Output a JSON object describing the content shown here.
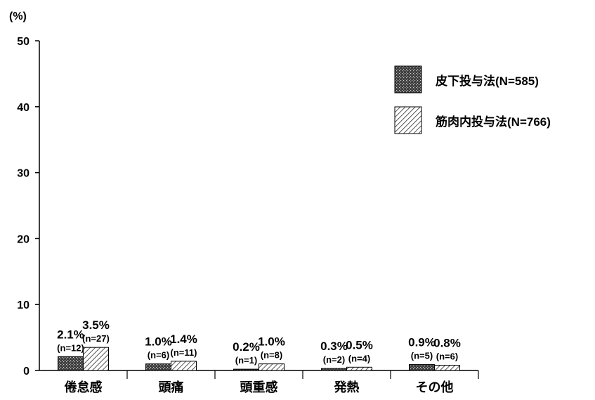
{
  "chart_data": {
    "type": "bar",
    "unit_label": "(%)",
    "ylim": [
      0,
      50
    ],
    "yticks": [
      0,
      10,
      20,
      30,
      40,
      50
    ],
    "grid": false,
    "legend_position": "top-right",
    "categories": [
      "倦怠感",
      "頭痛",
      "頭重感",
      "発熱",
      "その他"
    ],
    "series": [
      {
        "name": "皮下投与法(N=585)",
        "values": [
          2.1,
          1.0,
          0.2,
          0.3,
          0.9
        ],
        "value_labels": [
          "2.1%",
          "1.0%",
          "0.2%",
          "0.3%",
          "0.9%"
        ],
        "n_labels": [
          "(n=12)",
          "(n=6)",
          "(n=1)",
          "(n=2)",
          "(n=5)"
        ],
        "pattern": "crosshatch",
        "color": "#555555"
      },
      {
        "name": "筋肉内投与法(N=766)",
        "values": [
          3.5,
          1.4,
          1.0,
          0.5,
          0.8
        ],
        "value_labels": [
          "3.5%",
          "1.4%",
          "1.0%",
          "0.5%",
          "0.8%"
        ],
        "n_labels": [
          "(n=27)",
          "(n=11)",
          "(n=8)",
          "(n=4)",
          "(n=6)"
        ],
        "pattern": "diagonal",
        "color": "#777777"
      }
    ]
  }
}
